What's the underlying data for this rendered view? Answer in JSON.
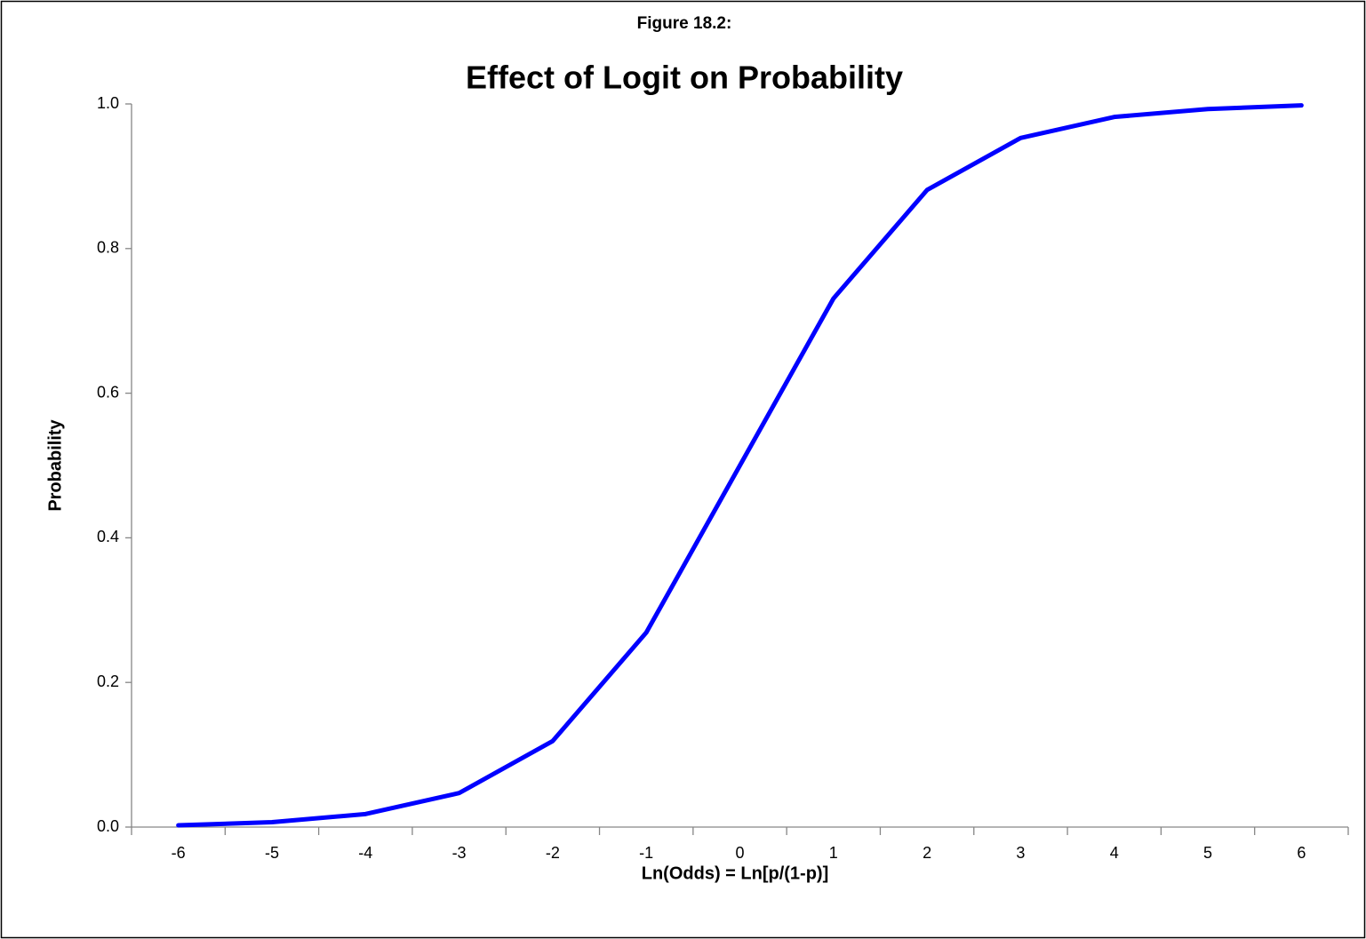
{
  "chart_data": {
    "type": "line",
    "supertitle": "Figure 18.2:",
    "title": "Effect of Logit on Probability",
    "x_label": "Ln(Odds) = Ln[p/(1-p)]",
    "y_label": "Probability",
    "categories": [
      "-6",
      "-5",
      "-4",
      "-3",
      "-2",
      "-1",
      "0",
      "1",
      "2",
      "3",
      "4",
      "5",
      "6"
    ],
    "series": [
      {
        "name": "Probability",
        "color": "#0000ff",
        "values": [
          0.0025,
          0.0067,
          0.018,
          0.047,
          0.119,
          0.269,
          0.5,
          0.731,
          0.881,
          0.953,
          0.982,
          0.993,
          0.998
        ]
      }
    ],
    "ylim": [
      0,
      1
    ],
    "yticks": [
      {
        "value": 0,
        "label": "0.0"
      },
      0.2,
      0.4,
      0.6,
      0.8,
      {
        "value": 1,
        "label": "1.0"
      }
    ],
    "grid": false
  }
}
